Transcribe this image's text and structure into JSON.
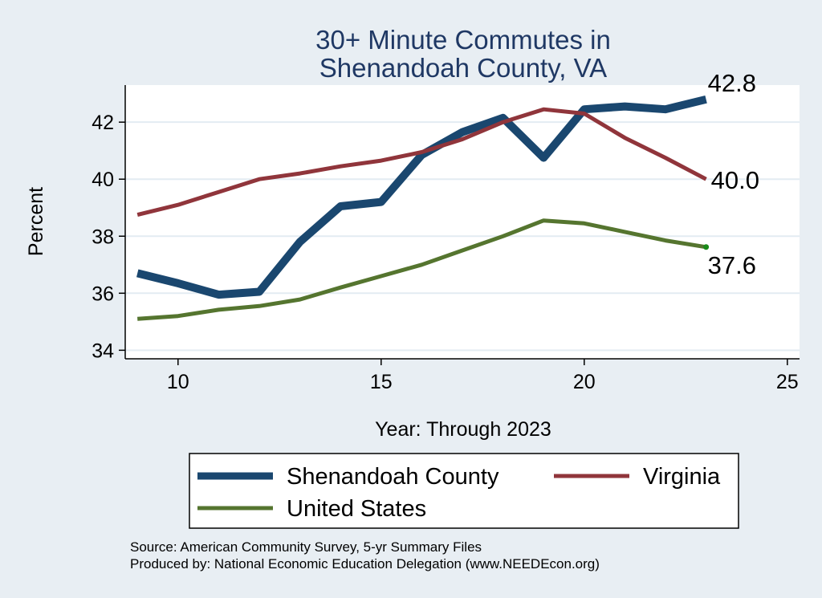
{
  "chart_data": {
    "type": "line",
    "title": [
      "30+ Minute Commutes in",
      "Shenandoah County, VA"
    ],
    "xlabel": "Year: Through 2023",
    "ylabel": "Percent",
    "xlim": [
      8.7,
      25.3
    ],
    "ylim": [
      33.7,
      43.3
    ],
    "x_ticks": [
      10,
      15,
      20,
      25
    ],
    "y_ticks": [
      34,
      36,
      38,
      40,
      42
    ],
    "grid": "horizontal",
    "legend_position": "bottom",
    "x": [
      9,
      10,
      11,
      12,
      13,
      14,
      15,
      16,
      17,
      18,
      19,
      20,
      21,
      22,
      23
    ],
    "series": [
      {
        "name": "Shenandoah County",
        "color": "#1a476f",
        "values": [
          36.7,
          36.35,
          35.95,
          36.05,
          37.8,
          39.05,
          39.2,
          40.85,
          41.65,
          42.15,
          40.75,
          42.45,
          42.55,
          42.45,
          42.8
        ],
        "end_label": "42.8"
      },
      {
        "name": "Virginia",
        "color": "#90353b",
        "values": [
          38.75,
          39.1,
          39.55,
          40.0,
          40.2,
          40.45,
          40.65,
          40.95,
          41.4,
          42.0,
          42.45,
          42.3,
          41.45,
          40.75,
          40.0
        ],
        "end_label": "40.0"
      },
      {
        "name": "United States",
        "color": "#55752f",
        "values": [
          35.1,
          35.2,
          35.42,
          35.55,
          35.78,
          36.2,
          36.6,
          37.0,
          37.5,
          38.0,
          38.55,
          38.45,
          38.15,
          37.85,
          37.62
        ],
        "end_label": "37.6"
      }
    ],
    "source_notes": [
      "Source: American Community Survey, 5-yr Summary Files",
      "Produced by: National Economic Education Delegation (www.NEEDEcon.org)"
    ]
  }
}
